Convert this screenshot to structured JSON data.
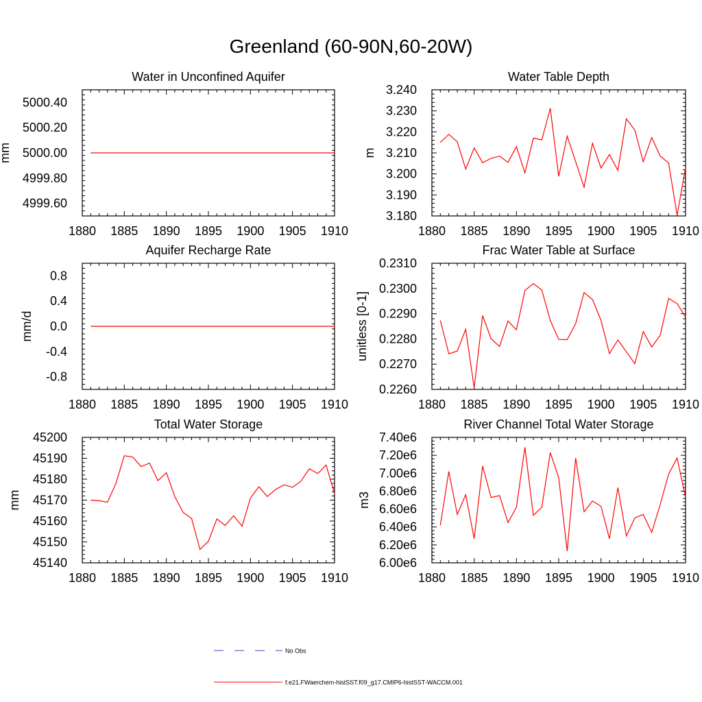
{
  "figure": {
    "title": "Greenland (60-90N,60-20W)"
  },
  "legend": [
    {
      "label": "No Obs",
      "color": "#4040c0",
      "style": "dashed"
    },
    {
      "label": "f.e21.FWaerchem-histSST.f09_g17.CMIP6-histSST-WACCM.001",
      "color": "#ff0000",
      "style": "solid"
    }
  ],
  "chart_data": [
    {
      "type": "line",
      "title": "Water in Unconfined Aquifer",
      "xlabel": "",
      "ylabel": "mm",
      "xlim": [
        1880,
        1910
      ],
      "ylim": [
        4999.5,
        5000.5
      ],
      "xticks": [
        "1880",
        "1885",
        "1890",
        "1895",
        "1900",
        "1905",
        "1910"
      ],
      "yticks": [
        "4999.60",
        "4999.80",
        "5000.00",
        "5000.20",
        "5000.40"
      ],
      "ytick_values": [
        4999.6,
        4999.8,
        5000.0,
        5000.2,
        5000.4
      ],
      "grid": false,
      "series": [
        {
          "color": "#ff0000",
          "x": [
            1881,
            1882,
            1883,
            1884,
            1885,
            1886,
            1887,
            1888,
            1889,
            1890,
            1891,
            1892,
            1893,
            1894,
            1895,
            1896,
            1897,
            1898,
            1899,
            1900,
            1901,
            1902,
            1903,
            1904,
            1905,
            1906,
            1907,
            1908,
            1909,
            1910
          ],
          "y": [
            5000,
            5000,
            5000,
            5000,
            5000,
            5000,
            5000,
            5000,
            5000,
            5000,
            5000,
            5000,
            5000,
            5000,
            5000,
            5000,
            5000,
            5000,
            5000,
            5000,
            5000,
            5000,
            5000,
            5000,
            5000,
            5000,
            5000,
            5000,
            5000,
            5000
          ]
        }
      ]
    },
    {
      "type": "line",
      "title": "Water Table Depth",
      "xlabel": "",
      "ylabel": "m",
      "xlim": [
        1880,
        1910
      ],
      "ylim": [
        3.18,
        3.24
      ],
      "xticks": [
        "1880",
        "1885",
        "1890",
        "1895",
        "1900",
        "1905",
        "1910"
      ],
      "yticks": [
        "3.180",
        "3.190",
        "3.200",
        "3.210",
        "3.220",
        "3.230",
        "3.240"
      ],
      "ytick_values": [
        3.18,
        3.19,
        3.2,
        3.21,
        3.22,
        3.23,
        3.24
      ],
      "grid": false,
      "series": [
        {
          "color": "#ff0000",
          "x": [
            1881,
            1882,
            1883,
            1884,
            1885,
            1886,
            1887,
            1888,
            1889,
            1890,
            1891,
            1892,
            1893,
            1894,
            1895,
            1896,
            1897,
            1898,
            1899,
            1900,
            1901,
            1902,
            1903,
            1904,
            1905,
            1906,
            1907,
            1908,
            1909,
            1910
          ],
          "y": [
            3.215,
            3.2188,
            3.2153,
            3.2023,
            3.2123,
            3.2053,
            3.2074,
            3.2085,
            3.2055,
            3.213,
            3.2005,
            3.217,
            3.2162,
            3.2312,
            3.1988,
            3.218,
            3.2058,
            3.1937,
            3.2146,
            3.2028,
            3.2092,
            3.2017,
            3.2262,
            3.2208,
            3.2058,
            3.2173,
            3.2085,
            3.2052,
            3.1803,
            3.203
          ]
        }
      ]
    },
    {
      "type": "line",
      "title": "Aquifer Recharge Rate",
      "xlabel": "",
      "ylabel": "mm/d",
      "xlim": [
        1880,
        1910
      ],
      "ylim": [
        -1.0,
        1.0
      ],
      "xticks": [
        "1880",
        "1885",
        "1890",
        "1895",
        "1900",
        "1905",
        "1910"
      ],
      "yticks": [
        "-0.8",
        "-0.4",
        "0.0",
        "0.4",
        "0.8"
      ],
      "ytick_values": [
        -0.8,
        -0.4,
        0.0,
        0.4,
        0.8
      ],
      "grid": false,
      "series": [
        {
          "color": "#ff0000",
          "x": [
            1881,
            1882,
            1883,
            1884,
            1885,
            1886,
            1887,
            1888,
            1889,
            1890,
            1891,
            1892,
            1893,
            1894,
            1895,
            1896,
            1897,
            1898,
            1899,
            1900,
            1901,
            1902,
            1903,
            1904,
            1905,
            1906,
            1907,
            1908,
            1909,
            1910
          ],
          "y": [
            0,
            0,
            0,
            0,
            0,
            0,
            0,
            0,
            0,
            0,
            0,
            0,
            0,
            0,
            0,
            0,
            0,
            0,
            0,
            0,
            0,
            0,
            0,
            0,
            0,
            0,
            0,
            0,
            0,
            0
          ]
        }
      ]
    },
    {
      "type": "line",
      "title": "Frac Water Table at Surface",
      "xlabel": "",
      "ylabel": "unitless [0-1]",
      "xlim": [
        1880,
        1910
      ],
      "ylim": [
        0.226,
        0.231
      ],
      "xticks": [
        "1880",
        "1885",
        "1890",
        "1895",
        "1900",
        "1905",
        "1910"
      ],
      "yticks": [
        "0.2260",
        "0.2270",
        "0.2280",
        "0.2290",
        "0.2300",
        "0.2310"
      ],
      "ytick_values": [
        0.226,
        0.227,
        0.228,
        0.229,
        0.23,
        0.231
      ],
      "grid": false,
      "series": [
        {
          "color": "#ff0000",
          "x": [
            1881,
            1882,
            1883,
            1884,
            1885,
            1886,
            1887,
            1888,
            1889,
            1890,
            1891,
            1892,
            1893,
            1894,
            1895,
            1896,
            1897,
            1898,
            1899,
            1900,
            1901,
            1902,
            1903,
            1904,
            1905,
            1906,
            1907,
            1908,
            1909,
            1910
          ],
          "y": [
            0.22873,
            0.22741,
            0.22752,
            0.22838,
            0.22606,
            0.22892,
            0.22801,
            0.2277,
            0.22871,
            0.22836,
            0.22992,
            0.23019,
            0.22994,
            0.22873,
            0.22798,
            0.22797,
            0.22861,
            0.22984,
            0.22956,
            0.22873,
            0.22742,
            0.22796,
            0.22749,
            0.22702,
            0.22829,
            0.22768,
            0.22814,
            0.22961,
            0.2294,
            0.22887
          ]
        }
      ]
    },
    {
      "type": "line",
      "title": "Total Water Storage",
      "xlabel": "",
      "ylabel": "mm",
      "xlim": [
        1880,
        1910
      ],
      "ylim": [
        45140,
        45200
      ],
      "xticks": [
        "1880",
        "1885",
        "1890",
        "1895",
        "1900",
        "1905",
        "1910"
      ],
      "yticks": [
        "45140",
        "45150",
        "45160",
        "45170",
        "45180",
        "45190",
        "45200"
      ],
      "ytick_values": [
        45140,
        45150,
        45160,
        45170,
        45180,
        45190,
        45200
      ],
      "grid": false,
      "series": [
        {
          "color": "#ff0000",
          "x": [
            1881,
            1882,
            1883,
            1884,
            1885,
            1886,
            1887,
            1888,
            1889,
            1890,
            1891,
            1892,
            1893,
            1894,
            1895,
            1896,
            1897,
            1898,
            1899,
            1900,
            1901,
            1902,
            1903,
            1904,
            1905,
            1906,
            1907,
            1908,
            1909,
            1910
          ],
          "y": [
            45170.0,
            45169.7,
            45169.0,
            45178.0,
            45191.2,
            45190.6,
            45186.0,
            45187.7,
            45179.3,
            45183.1,
            45171.7,
            45164.1,
            45161.2,
            45146.4,
            45150.3,
            45161.0,
            45157.9,
            45162.5,
            45157.5,
            45171.0,
            45176.4,
            45171.7,
            45175.1,
            45177.3,
            45176.1,
            45179.0,
            45185.0,
            45182.7,
            45186.8,
            45173.0
          ]
        }
      ]
    },
    {
      "type": "line",
      "title": "River Channel Total Water Storage",
      "xlabel": "",
      "ylabel": "m3",
      "xlim": [
        1880,
        1910
      ],
      "ylim": [
        6000000,
        7400000
      ],
      "xticks": [
        "1880",
        "1885",
        "1890",
        "1895",
        "1900",
        "1905",
        "1910"
      ],
      "yticks": [
        "6.00e6",
        "6.20e6",
        "6.40e6",
        "6.60e6",
        "6.80e6",
        "7.00e6",
        "7.20e6",
        "7.40e6"
      ],
      "ytick_values": [
        6000000,
        6200000,
        6400000,
        6600000,
        6800000,
        7000000,
        7200000,
        7400000
      ],
      "grid": false,
      "series": [
        {
          "color": "#ff0000",
          "x": [
            1881,
            1882,
            1883,
            1884,
            1885,
            1886,
            1887,
            1888,
            1889,
            1890,
            1891,
            1892,
            1893,
            1894,
            1895,
            1896,
            1897,
            1898,
            1899,
            1900,
            1901,
            1902,
            1903,
            1904,
            1905,
            1906,
            1907,
            1908,
            1909,
            1910
          ],
          "y": [
            6420000,
            7020000,
            6540000,
            6760000,
            6270000,
            7080000,
            6730000,
            6750000,
            6450000,
            6620000,
            7290000,
            6530000,
            6620000,
            7230000,
            6950000,
            6130000,
            7170000,
            6570000,
            6690000,
            6630000,
            6270000,
            6840000,
            6300000,
            6500000,
            6540000,
            6340000,
            6650000,
            6990000,
            7170000,
            6730000
          ]
        }
      ]
    }
  ]
}
